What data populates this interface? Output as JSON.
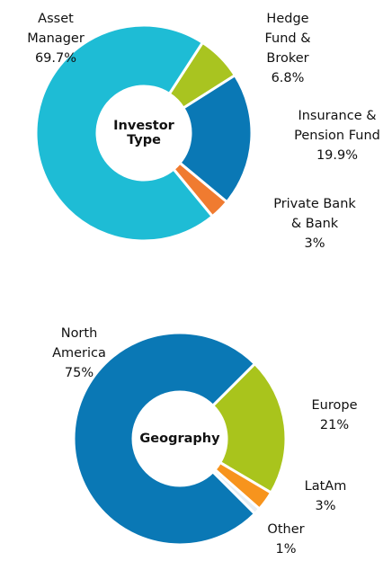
{
  "chart_data": [
    {
      "type": "pie",
      "title": "Investor Type",
      "categories": [
        "Hedge Fund & Broker",
        "Insurance & Pension Fund",
        "Private Bank & Bank",
        "Asset Manager"
      ],
      "values": [
        6.8,
        19.9,
        3,
        69.7
      ],
      "value_labels": [
        "6.8%",
        "19.9%",
        "3%",
        "69.7%"
      ],
      "colors": [
        "#a9c420",
        "#0a78b5",
        "#f07b30",
        "#1ebcd5"
      ]
    },
    {
      "type": "pie",
      "title": "Geography",
      "categories": [
        "Europe",
        "LatAm",
        "Other",
        "North America"
      ],
      "values": [
        21,
        3,
        1,
        75
      ],
      "value_labels": [
        "21%",
        "3%",
        "1%",
        "75%"
      ],
      "colors": [
        "#a9c41c",
        "#f7941d",
        "#e6eef3",
        "#0a78b5"
      ]
    }
  ]
}
